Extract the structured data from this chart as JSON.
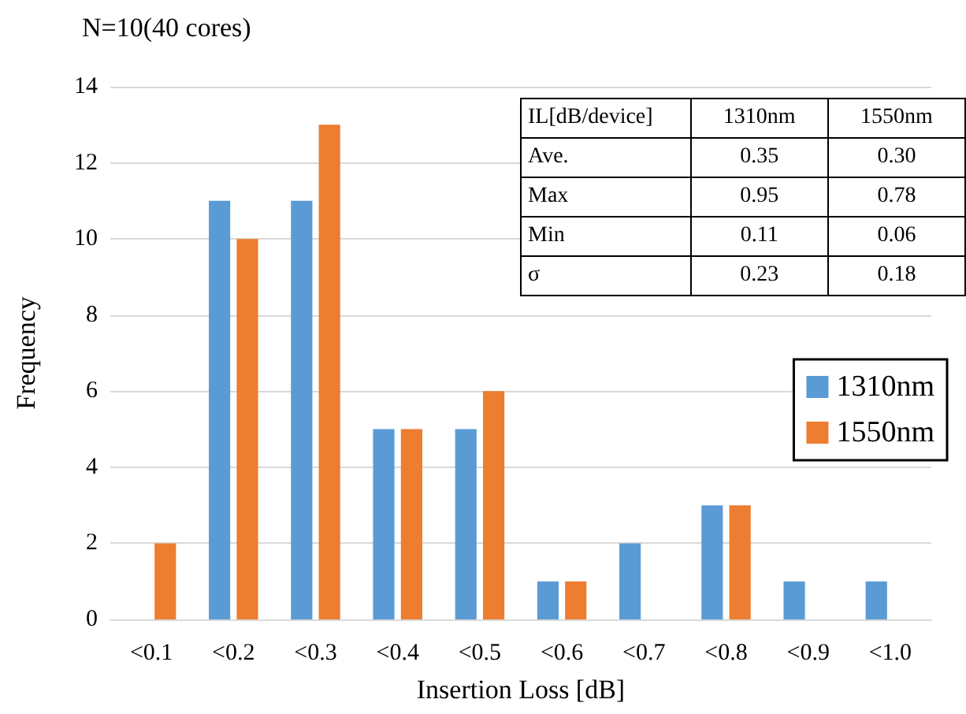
{
  "chart_data": {
    "type": "bar",
    "xlabel": "Insertion Loss [dB]",
    "ylabel": "Frequency",
    "categories": [
      "<0.1",
      "<0.2",
      "<0.3",
      "<0.4",
      "<0.5",
      "<0.6",
      "<0.7",
      "<0.8",
      "<0.9",
      "<1.0"
    ],
    "series": [
      {
        "name": "1310nm",
        "color": "#5b9bd5",
        "values": [
          0,
          11,
          11,
          5,
          5,
          1,
          2,
          3,
          1,
          1
        ]
      },
      {
        "name": "1550nm",
        "color": "#ed7d31",
        "values": [
          2,
          10,
          13,
          5,
          6,
          1,
          0,
          3,
          0,
          0
        ]
      }
    ],
    "ylim": [
      0,
      14
    ],
    "yticks": [
      0,
      2,
      4,
      6,
      8,
      10,
      12,
      14
    ],
    "grid": "y",
    "legend": "right",
    "annotations": [
      "N=10(40 cores)",
      "IL[dB/device]",
      "1310nm",
      "1550nm",
      "Ave.",
      "0.35",
      "0.30",
      "Max",
      "0.95",
      "0.78",
      "Min",
      "0.11",
      "0.06",
      "σ",
      "0.23",
      "0.18"
    ]
  }
}
